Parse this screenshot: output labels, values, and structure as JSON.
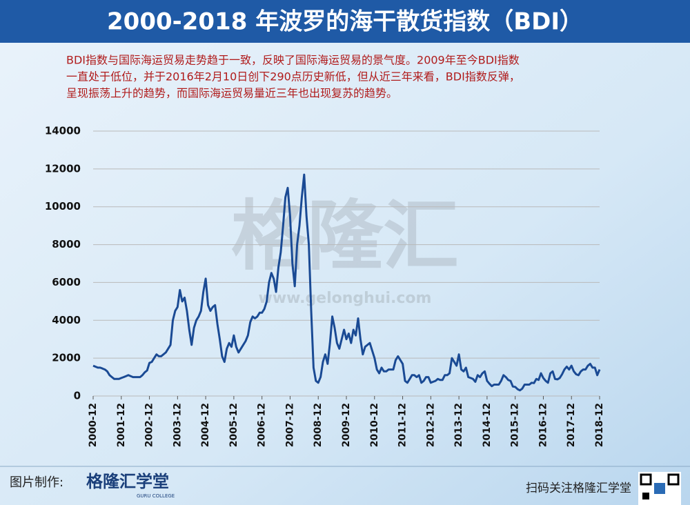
{
  "chart_data": {
    "type": "line",
    "title": "2000-2018 年波罗的海干散货指数（BDI）",
    "subtitle": [
      "BDI指数与国际海运贸易走势趋于一致，反映了国际海运贸易的景气度。2009年至今BDI指数",
      "一直处于低位，并于2016年2月10日创下290点历史新低，但从近三年来看，BDI指数反弹，",
      "呈现振荡上升的趋势，而国际海运贸易量近三年也出现复苏的趋势。"
    ],
    "watermark": [
      "格隆汇",
      "www.gelonghui.com"
    ],
    "footer": {
      "left": "图片制作:",
      "logo": "格隆汇学堂",
      "logo_sub": "GURU COLLEGE",
      "right": "扫码关注格隆汇学堂"
    },
    "categories": [
      "2000-12",
      null,
      null,
      null,
      null,
      null,
      null,
      null,
      null,
      null,
      null,
      null,
      "2001-12",
      null,
      null,
      null,
      null,
      null,
      null,
      null,
      null,
      null,
      null,
      null,
      "2002-12",
      null,
      null,
      null,
      null,
      null,
      null,
      null,
      null,
      null,
      null,
      null,
      "2003-12",
      null,
      null,
      null,
      null,
      null,
      null,
      null,
      null,
      null,
      null,
      null,
      "2004-12",
      null,
      null,
      null,
      null,
      null,
      null,
      null,
      null,
      null,
      null,
      null,
      "2005-12",
      null,
      null,
      null,
      null,
      null,
      null,
      null,
      null,
      null,
      null,
      null,
      "2006-12",
      null,
      null,
      null,
      null,
      null,
      null,
      null,
      null,
      null,
      null,
      null,
      "2007-12",
      null,
      null,
      null,
      null,
      null,
      null,
      null,
      null,
      null,
      null,
      null,
      "2008-12",
      null,
      null,
      null,
      null,
      null,
      null,
      null,
      null,
      null,
      null,
      null,
      "2009-12",
      null,
      null,
      null,
      null,
      null,
      null,
      null,
      null,
      null,
      null,
      null,
      "2010-12",
      null,
      null,
      null,
      null,
      null,
      null,
      null,
      null,
      null,
      null,
      null,
      "2011-12",
      null,
      null,
      null,
      null,
      null,
      null,
      null,
      null,
      null,
      null,
      null,
      "2012-12",
      null,
      null,
      null,
      null,
      null,
      null,
      null,
      null,
      null,
      null,
      null,
      "2013-12",
      null,
      null,
      null,
      null,
      null,
      null,
      null,
      null,
      null,
      null,
      null,
      "2014-12",
      null,
      null,
      null,
      null,
      null,
      null,
      null,
      null,
      null,
      null,
      null,
      "2015-12",
      null,
      null,
      null,
      null,
      null,
      null,
      null,
      null,
      null,
      null,
      null,
      "2016-12",
      null,
      null,
      null,
      null,
      null,
      null,
      null,
      null,
      null,
      null,
      null,
      "2017-12",
      null,
      null,
      null,
      null,
      null,
      null,
      null,
      null,
      null,
      null,
      null,
      "2018-12"
    ],
    "series": [
      {
        "name": "BDI",
        "color": "#1a4a94",
        "values": [
          1600,
          1550,
          1500,
          1500,
          1450,
          1400,
          1300,
          1100,
          1000,
          900,
          900,
          900,
          950,
          1000,
          1050,
          1100,
          1050,
          1000,
          1000,
          1000,
          1000,
          1100,
          1250,
          1350,
          1750,
          1800,
          2000,
          2200,
          2100,
          2100,
          2200,
          2300,
          2500,
          2700,
          4000,
          4500,
          4700,
          5600,
          5000,
          5200,
          4500,
          3500,
          2700,
          3600,
          4000,
          4200,
          4500,
          5500,
          6200,
          4800,
          4500,
          4700,
          4800,
          3800,
          3000,
          2100,
          1800,
          2500,
          2800,
          2600,
          3200,
          2600,
          2300,
          2500,
          2700,
          2900,
          3200,
          3900,
          4200,
          4100,
          4200,
          4400,
          4400,
          4600,
          5000,
          6000,
          6500,
          6200,
          5500,
          6800,
          7600,
          9000,
          10500,
          11000,
          9500,
          7000,
          5800,
          8000,
          9000,
          10500,
          11700,
          9500,
          8000,
          4500,
          1500,
          800,
          700,
          1000,
          1800,
          2200,
          1700,
          2800,
          4200,
          3600,
          2800,
          2500,
          3000,
          3500,
          3000,
          3300,
          2800,
          3500,
          3200,
          4100,
          3000,
          2200,
          2600,
          2700,
          2800,
          2400,
          2000,
          1400,
          1200,
          1500,
          1300,
          1300,
          1400,
          1400,
          1400,
          1900,
          2100,
          1900,
          1700,
          800,
          700,
          900,
          1100,
          1100,
          1000,
          1100,
          700,
          800,
          1000,
          1000,
          700,
          750,
          800,
          900,
          850,
          850,
          1100,
          1100,
          1200,
          2000,
          1800,
          1600,
          2200,
          1400,
          1300,
          1500,
          1000,
          950,
          900,
          750,
          1100,
          1000,
          1200,
          1300,
          800,
          650,
          520,
          600,
          600,
          600,
          800,
          1100,
          1000,
          850,
          800,
          500,
          480,
          360,
          300,
          390,
          600,
          600,
          600,
          700,
          680,
          900,
          850,
          1200,
          950,
          800,
          700,
          1200,
          1300,
          900,
          880,
          950,
          1150,
          1400,
          1550,
          1400,
          1600,
          1300,
          1150,
          1100,
          1300,
          1400,
          1400,
          1600,
          1700,
          1500,
          1500,
          1100,
          1400
        ]
      }
    ],
    "ylim": [
      0,
      14000
    ],
    "yticks": [
      0,
      2000,
      4000,
      6000,
      8000,
      10000,
      12000,
      14000
    ],
    "grid": true
  }
}
